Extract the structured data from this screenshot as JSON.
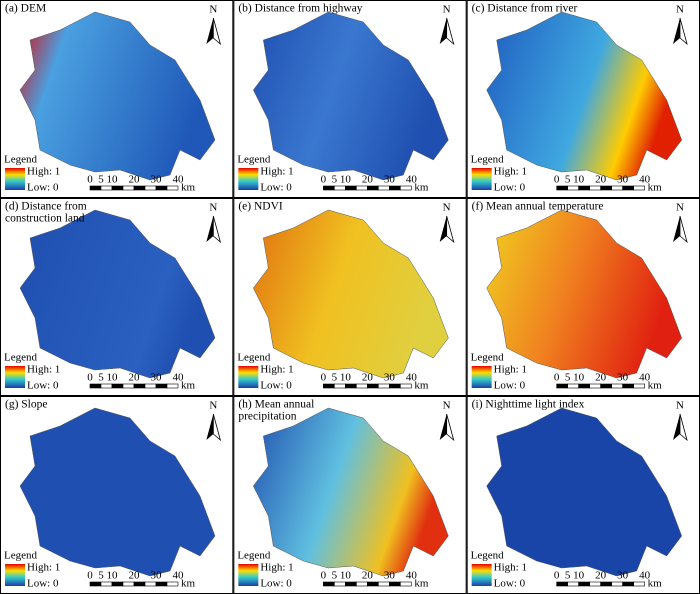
{
  "panels": [
    {
      "title": [
        "(a) DEM"
      ]
    },
    {
      "title": [
        "(b) Distance from highway"
      ]
    },
    {
      "title": [
        "(c) Distance from river"
      ]
    },
    {
      "title": [
        "(d) Distance from",
        "construction land"
      ]
    },
    {
      "title": [
        "(e) NDVI"
      ]
    },
    {
      "title": [
        "(f) Mean annual temperature"
      ]
    },
    {
      "title": [
        "(g) Slope"
      ]
    },
    {
      "title": [
        "(h) Mean annual",
        "precipitation"
      ]
    },
    {
      "title": [
        "(i) Nighttime light index"
      ]
    }
  ],
  "north": "N",
  "legend": {
    "title": "Legend",
    "high": "High: 1",
    "low": "Low: 0"
  },
  "scale": {
    "labels": [
      "0",
      "5",
      "10",
      "20",
      "30",
      "40"
    ],
    "unit": "km"
  }
}
